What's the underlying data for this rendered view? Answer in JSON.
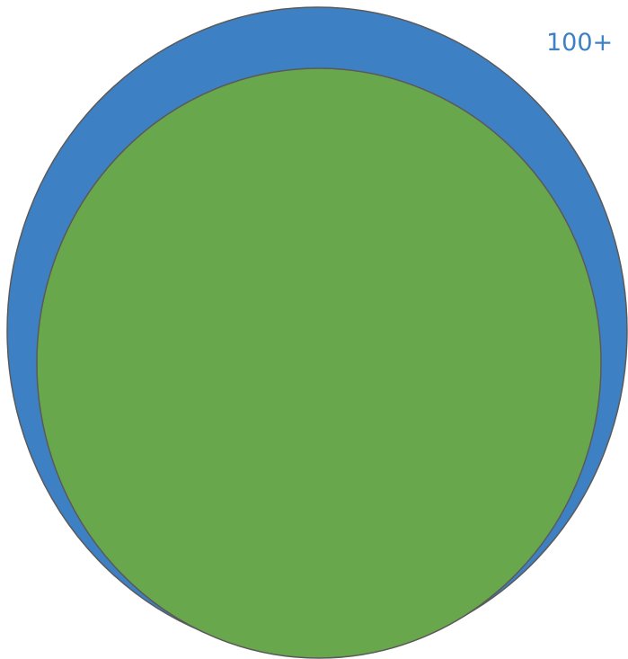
{
  "diagram": {
    "outer_circle": {
      "label": "100+",
      "fill": "#3d80c4",
      "label_color": "#3d80c4"
    },
    "inner_circle": {
      "fill": "#69a74d"
    },
    "stroke_color": "#5a5a5a"
  }
}
